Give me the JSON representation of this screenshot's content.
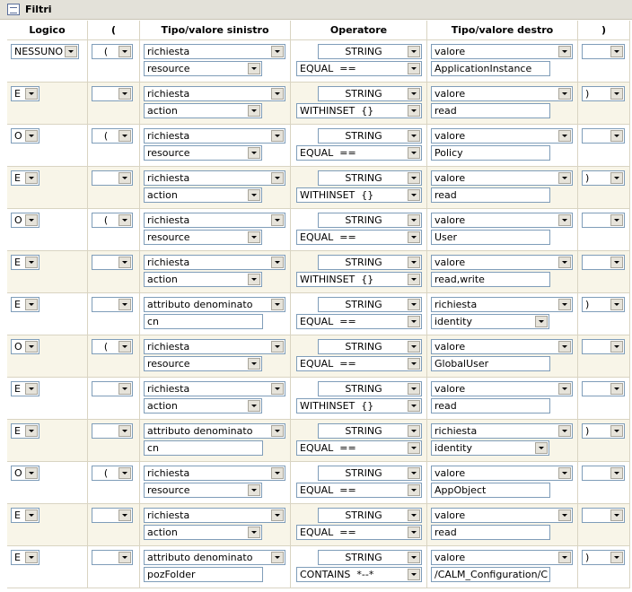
{
  "header": {
    "title": "Filtri"
  },
  "table": {
    "columns": [
      "Logico",
      "(",
      "Tipo/valore sinistro",
      "Operatore",
      "Tipo/valore destro",
      ")"
    ],
    "rows": [
      {
        "logic": "NESSUNO",
        "open": "(",
        "left": {
          "type": "richiesta",
          "select": "resource"
        },
        "op": {
          "type": "STRING",
          "select": "EQUAL  =="
        },
        "right": {
          "type": "valore",
          "input": "ApplicationInstance"
        }
      },
      {
        "logic": "E",
        "left": {
          "type": "richiesta",
          "select": "action"
        },
        "op": {
          "type": "STRING",
          "select": "WITHINSET  {}"
        },
        "right": {
          "type": "valore",
          "input": "read"
        },
        "close": ")"
      },
      {
        "logic": "O",
        "open": "(",
        "left": {
          "type": "richiesta",
          "select": "resource"
        },
        "op": {
          "type": "STRING",
          "select": "EQUAL  =="
        },
        "right": {
          "type": "valore",
          "input": "Policy"
        }
      },
      {
        "logic": "E",
        "left": {
          "type": "richiesta",
          "select": "action"
        },
        "op": {
          "type": "STRING",
          "select": "WITHINSET  {}"
        },
        "right": {
          "type": "valore",
          "input": "read"
        },
        "close": ")"
      },
      {
        "logic": "O",
        "open": "(",
        "left": {
          "type": "richiesta",
          "select": "resource"
        },
        "op": {
          "type": "STRING",
          "select": "EQUAL  =="
        },
        "right": {
          "type": "valore",
          "input": "User"
        }
      },
      {
        "logic": "E",
        "left": {
          "type": "richiesta",
          "select": "action"
        },
        "op": {
          "type": "STRING",
          "select": "WITHINSET  {}"
        },
        "right": {
          "type": "valore",
          "input": "read,write"
        }
      },
      {
        "logic": "E",
        "left": {
          "type": "attributo denominato",
          "input": "cn"
        },
        "op": {
          "type": "STRING",
          "select": "EQUAL  =="
        },
        "right": {
          "type": "richiesta",
          "select": "identity"
        },
        "close": ")"
      },
      {
        "logic": "O",
        "open": "(",
        "left": {
          "type": "richiesta",
          "select": "resource"
        },
        "op": {
          "type": "STRING",
          "select": "EQUAL  =="
        },
        "right": {
          "type": "valore",
          "input": "GlobalUser"
        }
      },
      {
        "logic": "E",
        "left": {
          "type": "richiesta",
          "select": "action"
        },
        "op": {
          "type": "STRING",
          "select": "WITHINSET  {}"
        },
        "right": {
          "type": "valore",
          "input": "read"
        }
      },
      {
        "logic": "E",
        "left": {
          "type": "attributo denominato",
          "input": "cn"
        },
        "op": {
          "type": "STRING",
          "select": "EQUAL  =="
        },
        "right": {
          "type": "richiesta",
          "select": "identity"
        },
        "close": ")"
      },
      {
        "logic": "O",
        "open": "(",
        "left": {
          "type": "richiesta",
          "select": "resource"
        },
        "op": {
          "type": "STRING",
          "select": "EQUAL  =="
        },
        "right": {
          "type": "valore",
          "input": "AppObject"
        }
      },
      {
        "logic": "E",
        "left": {
          "type": "richiesta",
          "select": "action"
        },
        "op": {
          "type": "STRING",
          "select": "EQUAL  =="
        },
        "right": {
          "type": "valore",
          "input": "read"
        }
      },
      {
        "logic": "E",
        "left": {
          "type": "attributo denominato",
          "input": "pozFolder"
        },
        "op": {
          "type": "STRING",
          "select": "CONTAINS  *--*"
        },
        "right": {
          "type": "valore",
          "input": "/CALM_Configuration/C"
        },
        "close": ")"
      }
    ]
  }
}
